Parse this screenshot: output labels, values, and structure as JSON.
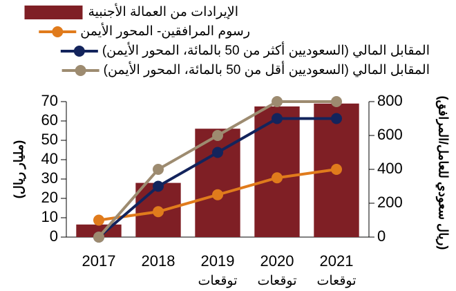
{
  "chart_data": {
    "type": "bar_line",
    "categories": [
      "2017",
      "2018",
      "2019",
      "2020",
      "2021"
    ],
    "category_sublabels": [
      null,
      null,
      "توقعات",
      "توقعات",
      "توقعات"
    ],
    "y_label": "(مليار ريال)",
    "y2_label": "(ريال سعودي للعامل/المرافق)",
    "ylim": [
      0,
      70
    ],
    "yticks": [
      0,
      10,
      20,
      30,
      40,
      50,
      60,
      70
    ],
    "y2lim": [
      0,
      800
    ],
    "y2ticks": [
      0,
      200,
      400,
      600,
      800
    ],
    "series": [
      {
        "name": "الإيرادات من العمالة الأجنبية",
        "type": "bar",
        "color": "#7f1f25",
        "values": [
          6.5,
          28,
          56,
          67.5,
          69
        ]
      },
      {
        "name": "رسوم المرافقين- المحور الأيمن",
        "type": "line",
        "axis": "y2",
        "color": "#e07b1c",
        "values": [
          100,
          150,
          250,
          350,
          400
        ]
      },
      {
        "name": "المقابل المالي (السعوديين أكثر من 50 بالمائة، المحور الأيمن)",
        "type": "line",
        "axis": "y2",
        "color": "#13245c",
        "values": [
          0,
          300,
          500,
          700,
          700
        ]
      },
      {
        "name": "المقابل المالي (السعوديين أقل من 50 بالمائة، المحور الأيمن)",
        "type": "line",
        "axis": "y2",
        "color": "#9d8b70",
        "values": [
          0,
          400,
          600,
          800,
          800
        ]
      }
    ]
  }
}
